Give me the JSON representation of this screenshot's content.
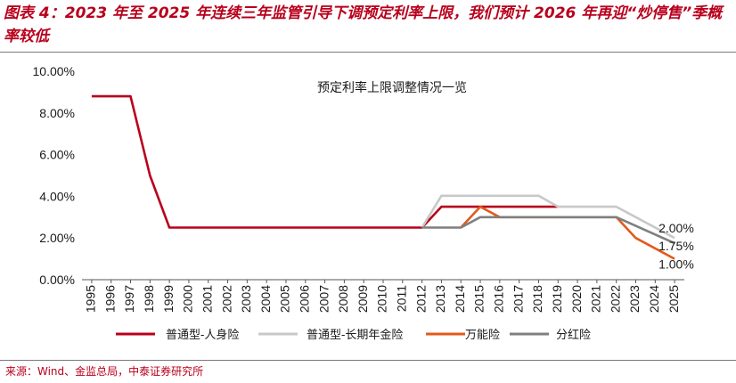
{
  "figure": {
    "title": "图表 4：2023 年至 2025 年连续三年监管引导下调预定利率上限，我们预计 2026 年再迎“炒停售”季概率较低",
    "source": "来源：Wind、金监总局，中泰证券研究所"
  },
  "chart_data": {
    "type": "line",
    "title": "预定利率上限调整情况一览",
    "xlabel": "",
    "ylabel": "",
    "x": [
      "1995",
      "1996",
      "1997",
      "1998",
      "1999",
      "2000",
      "2001",
      "2002",
      "2003",
      "2004",
      "2005",
      "2006",
      "2007",
      "2008",
      "2009",
      "2010",
      "2011",
      "2012",
      "2013",
      "2014",
      "2015",
      "2016",
      "2017",
      "2018",
      "2019",
      "2020",
      "2021",
      "2022",
      "2023",
      "2024",
      "2025"
    ],
    "y_ticks": [
      "0.00%",
      "2.00%",
      "4.00%",
      "6.00%",
      "8.00%",
      "10.00%"
    ],
    "ylim": [
      0,
      10
    ],
    "grid": false,
    "legend": "bottom",
    "series": [
      {
        "name": "普通型-人身险",
        "color": "#b8001c",
        "points": [
          [
            1995,
            8.8
          ],
          [
            1997,
            8.8
          ],
          [
            1998,
            5.0
          ],
          [
            1999,
            2.5
          ],
          [
            2012,
            2.5
          ],
          [
            2013,
            3.5
          ],
          [
            2019,
            3.5
          ]
        ]
      },
      {
        "name": "普通型-长期年金险",
        "color": "#c8c8c8",
        "points": [
          [
            2012,
            2.5
          ],
          [
            2013,
            4.025
          ],
          [
            2018,
            4.025
          ],
          [
            2019,
            3.5
          ],
          [
            2022,
            3.5
          ],
          [
            2025,
            2.0
          ]
        ]
      },
      {
        "name": "万能险",
        "color": "#e25a1c",
        "points": [
          [
            2014,
            2.5
          ],
          [
            2015,
            3.5
          ],
          [
            2016,
            3.0
          ],
          [
            2022,
            3.0
          ],
          [
            2023,
            2.0
          ],
          [
            2025,
            1.0
          ]
        ]
      },
      {
        "name": "分红险",
        "color": "#7f7f7f",
        "points": [
          [
            2012,
            2.5
          ],
          [
            2014,
            2.5
          ],
          [
            2015,
            3.0
          ],
          [
            2022,
            3.0
          ],
          [
            2025,
            1.75
          ]
        ]
      }
    ],
    "annotations": [
      {
        "text": "2.00%",
        "x": 2025,
        "y": 2.0
      },
      {
        "text": "1.75%",
        "x": 2025,
        "y": 1.75
      },
      {
        "text": "1.00%",
        "x": 2025,
        "y": 1.0
      }
    ]
  }
}
